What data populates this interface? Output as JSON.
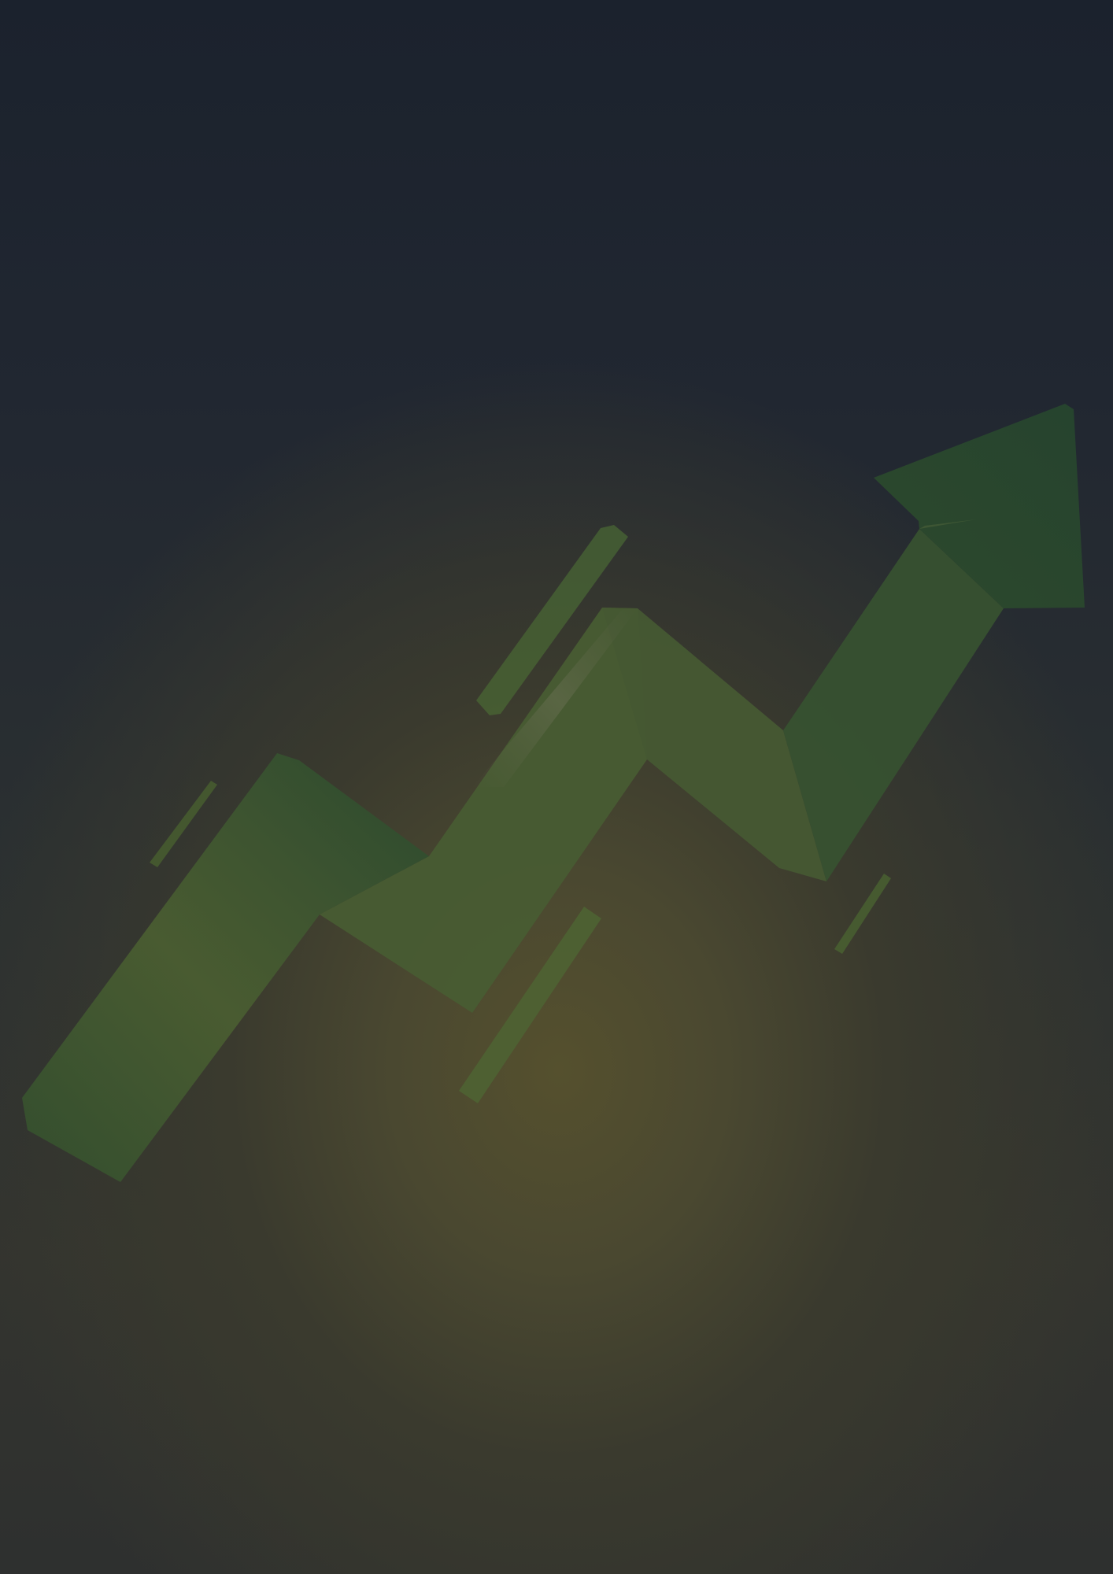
{
  "colors": {
    "background_top": "#1b222d",
    "background_glow": "#55502e",
    "arrow_dark": "#2f5230",
    "arrow_mid": "#47592f",
    "arrow_light": "#556a3e",
    "accent_bar": "#4a6a34"
  },
  "icons": {
    "main": "rising-zigzag-arrow-icon"
  }
}
